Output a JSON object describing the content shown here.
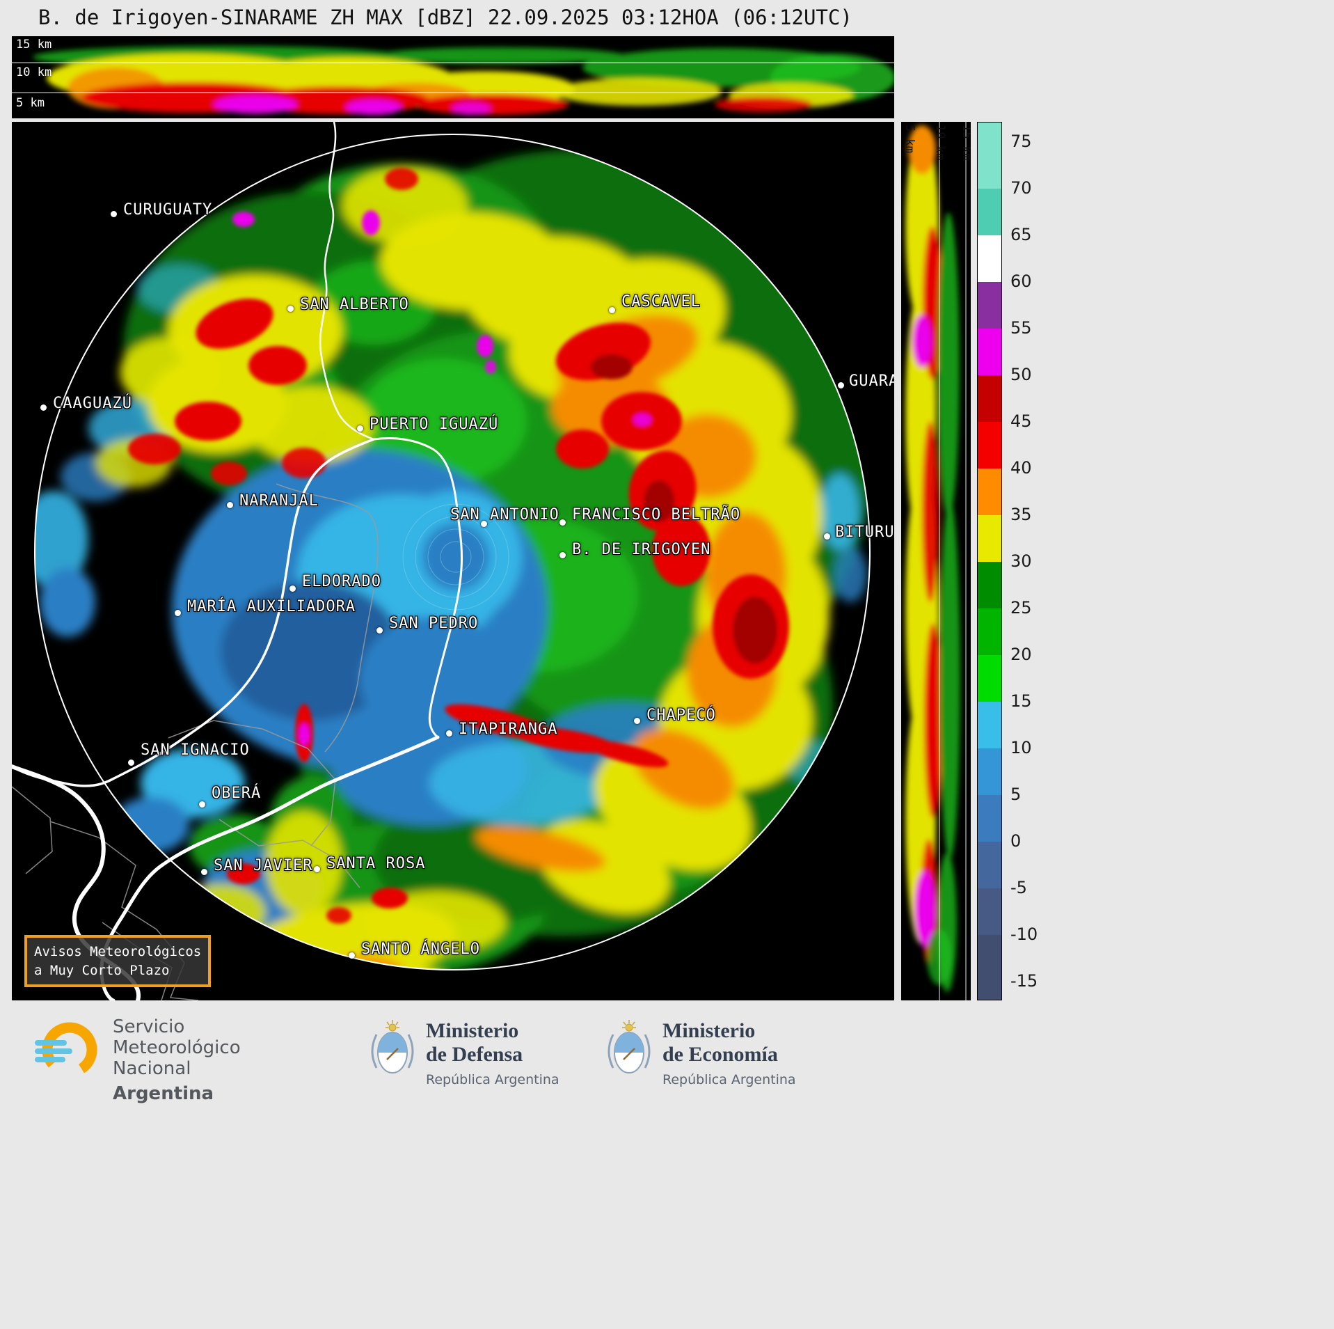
{
  "title": "B. de Irigoyen-SINARAME ZH MAX [dBZ] 22.09.2025 03:12HOA (06:12UTC)",
  "top_profile": {
    "altitude_labels": [
      "15 km",
      "10 km",
      "5 km"
    ]
  },
  "side_profile": {
    "altitude_labels": [
      "5 km",
      "10 km",
      "15 km"
    ]
  },
  "colorbar": {
    "ticks": [
      "75",
      "70",
      "65",
      "60",
      "55",
      "50",
      "45",
      "40",
      "35",
      "30",
      "25",
      "20",
      "15",
      "10",
      "5",
      "0",
      "-5",
      "-10",
      "-15"
    ],
    "segment_colors": [
      "#7FE3CC",
      "#4FCDB2",
      "#FFFFFF",
      "#8A2FA0",
      "#EE00EE",
      "#C40000",
      "#F40000",
      "#FF8C00",
      "#E8E800",
      "#008C00",
      "#00B400",
      "#00DC00",
      "#38BEE8",
      "#3496D6",
      "#3A7CBE",
      "#44689E",
      "#475A85",
      "#414E70"
    ]
  },
  "cities": [
    {
      "name": "CURUGUATY",
      "dot": [
        146,
        132
      ],
      "label": [
        160,
        114
      ]
    },
    {
      "name": "SAN ALBERTO",
      "dot": [
        400,
        268
      ],
      "label": [
        414,
        250
      ]
    },
    {
      "name": "CASCAVEL",
      "dot": [
        862,
        270
      ],
      "label": [
        876,
        246
      ]
    },
    {
      "name": "CAAGUAZÚ",
      "dot": [
        45,
        410
      ],
      "label": [
        59,
        392
      ]
    },
    {
      "name": "PUERTO IGUAZÚ",
      "dot": [
        500,
        440
      ],
      "label": [
        514,
        422
      ]
    },
    {
      "name": "NARANJAL",
      "dot": [
        313,
        550
      ],
      "label": [
        327,
        532
      ]
    },
    {
      "name": "SAN ANTONIO",
      "dot": [
        678,
        577
      ],
      "label": [
        630,
        552
      ]
    },
    {
      "name": "FRANCISCO BELTRÃO",
      "dot": [
        791,
        575
      ],
      "label": [
        805,
        552
      ]
    },
    {
      "name": "B. DE IRIGOYEN",
      "dot": [
        791,
        622
      ],
      "label": [
        805,
        602
      ]
    },
    {
      "name": "GUARAP",
      "dot": [
        1191,
        378
      ],
      "label": [
        1203,
        360
      ]
    },
    {
      "name": "BITURU",
      "dot": [
        1171,
        595
      ],
      "label": [
        1183,
        577
      ]
    },
    {
      "name": "ELDORADO",
      "dot": [
        403,
        670
      ],
      "label": [
        417,
        648
      ]
    },
    {
      "name": "MARÍA AUXILIADORA",
      "dot": [
        238,
        705
      ],
      "label": [
        252,
        684
      ]
    },
    {
      "name": "SAN PEDRO",
      "dot": [
        528,
        730
      ],
      "label": [
        542,
        708
      ]
    },
    {
      "name": "CHAPECÓ",
      "dot": [
        898,
        860
      ],
      "label": [
        912,
        840
      ]
    },
    {
      "name": "ITAPIRANGA",
      "dot": [
        628,
        878
      ],
      "label": [
        642,
        860
      ]
    },
    {
      "name": "SAN IGNACIO",
      "dot": [
        171,
        920
      ],
      "label": [
        185,
        890
      ]
    },
    {
      "name": "OBERÁ",
      "dot": [
        273,
        980
      ],
      "label": [
        287,
        952
      ]
    },
    {
      "name": "SAN JAVIER",
      "dot": [
        276,
        1077
      ],
      "label": [
        290,
        1056
      ]
    },
    {
      "name": "SANTA ROSA",
      "dot": [
        438,
        1073
      ],
      "label": [
        452,
        1053
      ]
    },
    {
      "name": "SANTO ÁNGELO",
      "dot": [
        488,
        1197
      ],
      "label": [
        502,
        1176
      ]
    }
  ],
  "warning_box": {
    "lines": [
      "Avisos Meteorológicos",
      "a Muy Corto Plazo"
    ],
    "border_color": "#F0A020"
  },
  "footer": {
    "smn": {
      "lines": [
        "Servicio",
        "Meteorológico",
        "Nacional"
      ],
      "country": "Argentina"
    },
    "ministries": [
      {
        "lines": [
          "Ministerio",
          "de Defensa"
        ],
        "sub": "República Argentina"
      },
      {
        "lines": [
          "Ministerio",
          "de Economía"
        ],
        "sub": "República Argentina"
      }
    ]
  }
}
